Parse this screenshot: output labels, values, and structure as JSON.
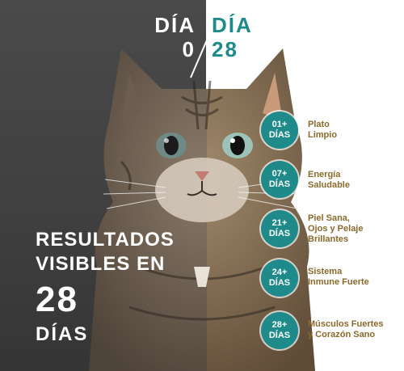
{
  "header": {
    "before_word": "DÍA",
    "before_num": "0",
    "after_word": "DÍA",
    "after_num": "28"
  },
  "headline": {
    "line1": "RESULTADOS",
    "line2": "VISIBLES EN",
    "number": "28",
    "unit": "DÍAS"
  },
  "benefits": [
    {
      "badge_num": "01+",
      "badge_unit": "DÍAS",
      "line1": "Plato",
      "line2": "Limpio",
      "line3": ""
    },
    {
      "badge_num": "07+",
      "badge_unit": "DÍAS",
      "line1": "Energía",
      "line2": "Saludable",
      "line3": ""
    },
    {
      "badge_num": "21+",
      "badge_unit": "DÍAS",
      "line1": "Piel Sana,",
      "line2": "Ojos y Pelaje",
      "line3": "Brillantes"
    },
    {
      "badge_num": "24+",
      "badge_unit": "DÍAS",
      "line1": "Sistema",
      "line2": "Inmune Fuerte",
      "line3": ""
    },
    {
      "badge_num": "28+",
      "badge_unit": "DÍAS",
      "line1": "Músculos Fuertes",
      "line2": "y Corazón Sano",
      "line3": ""
    }
  ],
  "colors": {
    "accent": "#1e8a8a",
    "benefit_text": "#8a6a2c",
    "dark_panel": "#444444"
  }
}
